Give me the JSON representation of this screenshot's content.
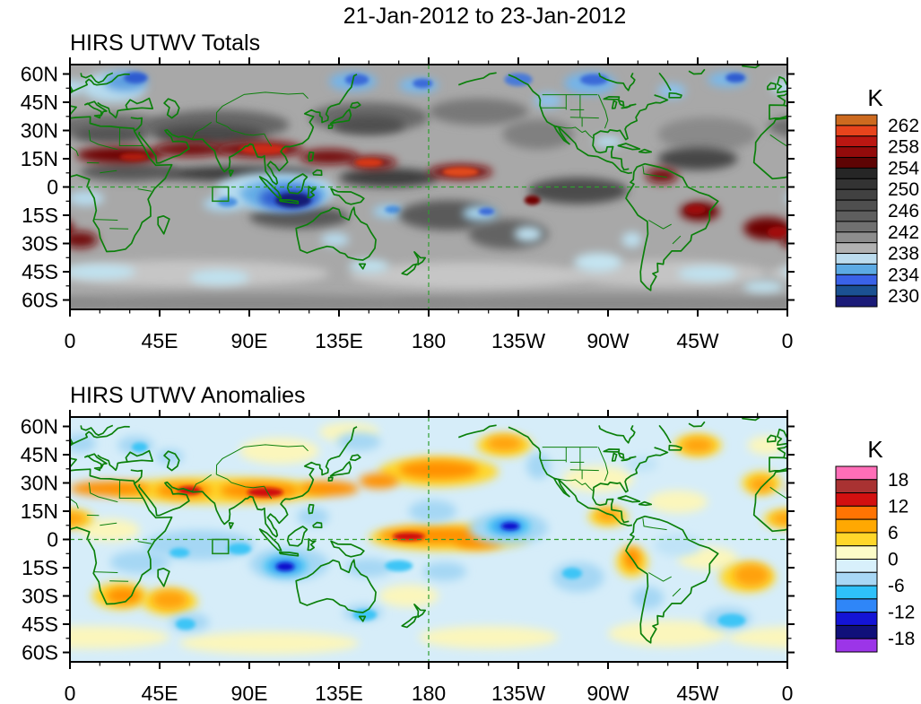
{
  "main_title": "21-Jan-2012 to 23-Jan-2012",
  "panels": [
    {
      "title": "HIRS UTWV Totals",
      "x_tick_labels": [
        "0",
        "45E",
        "90E",
        "135E",
        "180",
        "135W",
        "90W",
        "45W",
        "0"
      ],
      "y_tick_labels": [
        "60N",
        "45N",
        "30N",
        "15N",
        "0",
        "15S",
        "30S",
        "45S",
        "60S"
      ],
      "colorbar": {
        "title": "K",
        "labels": [
          "262",
          "258",
          "254",
          "250",
          "246",
          "242",
          "238",
          "234",
          "230"
        ],
        "colors": [
          "#cd6a1f",
          "#e8441c",
          "#bb1712",
          "#930b0b",
          "#5e0404",
          "#262626",
          "#333333",
          "#414141",
          "#4f4f4f",
          "#5e5e5e",
          "#707070",
          "#8d8d8d",
          "#b1b1b1",
          "#bcdcee",
          "#5caae4",
          "#3a62e8",
          "#1b5192",
          "#1b1b78"
        ]
      }
    },
    {
      "title": "HIRS UTWV Anomalies",
      "x_tick_labels": [
        "0",
        "45E",
        "90E",
        "135E",
        "180",
        "135W",
        "90W",
        "45W",
        "0"
      ],
      "y_tick_labels": [
        "60N",
        "45N",
        "30N",
        "15N",
        "0",
        "15S",
        "30S",
        "45S",
        "60S"
      ],
      "colorbar": {
        "title": "K",
        "labels": [
          "18",
          "12",
          "6",
          "0",
          "-6",
          "-12",
          "-18"
        ],
        "colors": [
          "#ff6eb8",
          "#a93232",
          "#d21010",
          "#ff7403",
          "#ffa802",
          "#ffd72a",
          "#fdfcc8",
          "#d8f0fb",
          "#a8d7f5",
          "#2ec1fa",
          "#2f86f8",
          "#1414d6",
          "#10107a",
          "#9c35e8"
        ]
      }
    }
  ],
  "map_annotations": {
    "gridlines": "dashed green lines at the equator and at 180 longitude",
    "region_box": "green box outline near 72E-80E, 0-8S on both maps",
    "line_color": "#0b800b"
  },
  "chart_data": [
    {
      "type": "heatmap",
      "title": "HIRS UTWV Totals",
      "subtitle": "21-Jan-2012 to 23-Jan-2012",
      "units": "K",
      "x_ticks": [
        "0",
        "45E",
        "90E",
        "135E",
        "180",
        "135W",
        "90W",
        "45W",
        "0"
      ],
      "y_ticks": [
        "60N",
        "45N",
        "30N",
        "15N",
        "0",
        "15S",
        "30S",
        "45S",
        "60S"
      ],
      "lat_range_deg": [
        -65,
        65
      ],
      "lon_range_deg": [
        0,
        360
      ],
      "labeled_levels": [
        262,
        258,
        254,
        250,
        246,
        242,
        238,
        234,
        230
      ],
      "contour_interval_k": 2,
      "palette_order": "orange/red warm (>=254 K) -> grays mid-range (238-254 K) -> blues cold (<=238 K)",
      "notable_features": [
        "Warm band 254-263 K along ~10-25N from North Africa across Arabia, India and SE Asia into the central Pacific",
        "Warm maxima >=260 K near 90-110E/20N, 140-170E/12N and 175E-145W/8N",
        "Cold minimum 228-234 K over Indonesia and the eastern Indian Ocean (95-130E, 0-12S)",
        "Cold 230-238 K over NE Europe/Scandinavia, the North Pacific near 55N and central Canada",
        "Warm 254-260 K patches over the subtropical South Atlantic and eastern South America (10-25S)",
        "Light-blue 234-238 K bands along the Southern Ocean 40-55S",
        "Green dashed gridlines at the equator and 180; green box outline near 72-80E, 0-8S"
      ]
    },
    {
      "type": "heatmap",
      "title": "HIRS UTWV Anomalies",
      "subtitle": "21-Jan-2012 to 23-Jan-2012",
      "units": "K",
      "x_ticks": [
        "0",
        "45E",
        "90E",
        "135E",
        "180",
        "135W",
        "90W",
        "45W",
        "0"
      ],
      "y_ticks": [
        "60N",
        "45N",
        "30N",
        "15N",
        "0",
        "15S",
        "30S",
        "45S",
        "60S"
      ],
      "lat_range_deg": [
        -65,
        65
      ],
      "lon_range_deg": [
        0,
        360
      ],
      "labeled_levels": [
        18,
        12,
        6,
        0,
        -6,
        -12,
        -18
      ],
      "contour_interval_k": 3,
      "palette_order": "pink/red/orange positive -> pale yellow near zero -> cyan/blue/purple negative",
      "notable_features": [
        "Positive anomalies +6 to +15 K along ~20-30N from North Africa/Arabia across India and SE Asia",
        "Positive band +6 to +15 K along the equatorial Pacific from ~150E to 140W, maximum >= +12 K near 165-175E",
        "Strong negative anomaly -15 to -21 K centered near 105-115E, 10-18S (northwest of Australia)",
        "Strong negative anomaly -12 to -18 K centered near 140W, 5-10N",
        "Positive anomalies over the North Pacific 30-45N, Gulf of Alaska and western North Atlantic",
        "Positive patches over southern Africa, the SW Indian Ocean and the Peru coast",
        "Weak +/-3 K background (pale yellow / pale blue) elsewhere",
        "Green dashed gridlines at the equator and 180; green box outline near 72-80E, 0-8S"
      ]
    }
  ]
}
